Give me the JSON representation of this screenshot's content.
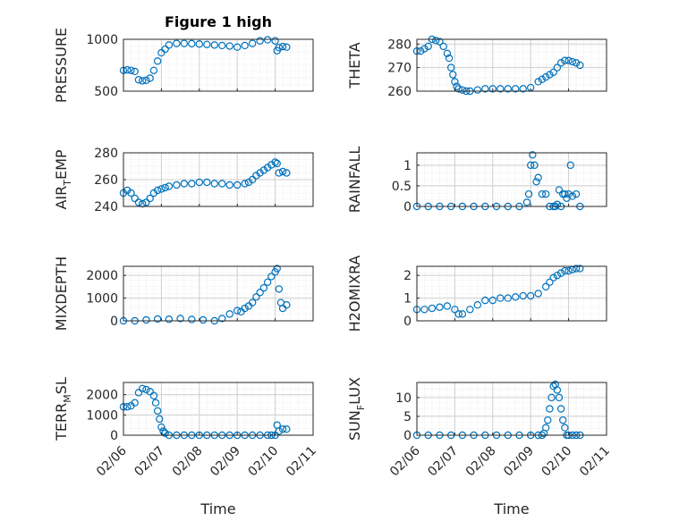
{
  "figure_title": "Figure 1 high",
  "colors": {
    "marker": "#0072BD",
    "axes": "#262626",
    "grid": "#cfcfcf",
    "minor_grid": "#e4e4e4"
  },
  "chart_data": [
    {
      "type": "scatter",
      "ylabel_main": "PRESSURE",
      "ylim": [
        500,
        1000
      ],
      "yticks": [
        500,
        1000
      ],
      "xlim": [
        "02/06",
        "02/11"
      ],
      "xticks": [],
      "grid": true,
      "x": [
        6.0,
        6.1,
        6.2,
        6.3,
        6.4,
        6.5,
        6.6,
        6.7,
        6.8,
        6.9,
        7.0,
        7.1,
        7.2,
        7.4,
        7.6,
        7.8,
        8.0,
        8.2,
        8.4,
        8.6,
        8.8,
        9.0,
        9.2,
        9.4,
        9.6,
        9.8,
        10.0,
        10.05,
        10.1,
        10.2,
        10.3
      ],
      "y": [
        700,
        705,
        700,
        690,
        610,
        600,
        605,
        625,
        700,
        790,
        870,
        905,
        945,
        960,
        960,
        958,
        955,
        950,
        945,
        940,
        935,
        925,
        940,
        960,
        985,
        995,
        985,
        890,
        920,
        930,
        925
      ]
    },
    {
      "type": "scatter",
      "ylabel_main": "THETA",
      "ylim": [
        260,
        282
      ],
      "yticks": [
        260,
        270,
        280
      ],
      "xlim": [
        "02/06",
        "02/11"
      ],
      "xticks": [],
      "grid": true,
      "x": [
        6.0,
        6.1,
        6.2,
        6.3,
        6.4,
        6.5,
        6.6,
        6.7,
        6.8,
        6.85,
        6.9,
        6.95,
        7.0,
        7.05,
        7.1,
        7.2,
        7.3,
        7.4,
        7.6,
        7.8,
        8.0,
        8.2,
        8.4,
        8.6,
        8.8,
        9.0,
        9.2,
        9.3,
        9.4,
        9.5,
        9.6,
        9.7,
        9.8,
        9.9,
        10.0,
        10.1,
        10.2,
        10.3
      ],
      "y": [
        277,
        277,
        278,
        279,
        282,
        281.5,
        281,
        279,
        276,
        274,
        270,
        267,
        264,
        262,
        261,
        260.5,
        260,
        260,
        260.5,
        261,
        261,
        261,
        261,
        261,
        261,
        261.5,
        264,
        265,
        266,
        267,
        268,
        270,
        272,
        273,
        273,
        272.5,
        272,
        271
      ]
    },
    {
      "type": "scatter",
      "ylabel_main": "AIR",
      "ylabel_sub": "T",
      "ylabel_rest": "EMP",
      "ylim": [
        240,
        280
      ],
      "yticks": [
        240,
        260,
        280
      ],
      "xlim": [
        "02/06",
        "02/11"
      ],
      "xticks": [],
      "grid": true,
      "x": [
        6.0,
        6.1,
        6.2,
        6.3,
        6.4,
        6.5,
        6.6,
        6.7,
        6.8,
        6.9,
        7.0,
        7.1,
        7.2,
        7.4,
        7.6,
        7.8,
        8.0,
        8.2,
        8.4,
        8.6,
        8.8,
        9.0,
        9.2,
        9.3,
        9.4,
        9.5,
        9.6,
        9.7,
        9.8,
        9.9,
        10.0,
        10.05,
        10.1,
        10.2,
        10.3
      ],
      "y": [
        250,
        252,
        250,
        246,
        243,
        242,
        243,
        246,
        250,
        252,
        253,
        254,
        255,
        256,
        257,
        257,
        258,
        258,
        257,
        257,
        256,
        256,
        257,
        258,
        260,
        263,
        265,
        267,
        269,
        271,
        273,
        272,
        265,
        266,
        265
      ]
    },
    {
      "type": "scatter",
      "ylabel_main": "RAINFALL",
      "ylim": [
        0,
        1.3
      ],
      "yticks": [
        0,
        0.5,
        1
      ],
      "xlim": [
        "02/06",
        "02/11"
      ],
      "xticks": [],
      "grid": true,
      "x": [
        6.0,
        6.3,
        6.6,
        6.9,
        7.2,
        7.5,
        7.8,
        8.1,
        8.4,
        8.7,
        8.9,
        8.95,
        9.0,
        9.05,
        9.1,
        9.15,
        9.2,
        9.3,
        9.4,
        9.5,
        9.6,
        9.65,
        9.7,
        9.75,
        9.8,
        9.85,
        9.9,
        9.95,
        10.0,
        10.05,
        10.1,
        10.2,
        10.3
      ],
      "y": [
        0,
        0,
        0,
        0,
        0,
        0,
        0,
        0,
        0,
        0,
        0.1,
        0.3,
        1.0,
        1.25,
        1.0,
        0.6,
        0.7,
        0.3,
        0.3,
        0,
        0,
        0,
        0.05,
        0.4,
        0,
        0.3,
        0.3,
        0.2,
        0.3,
        1.0,
        0.25,
        0.3,
        0
      ]
    },
    {
      "type": "scatter",
      "ylabel_main": "MIXDEPTH",
      "ylim": [
        0,
        2400
      ],
      "yticks": [
        0,
        1000,
        2000
      ],
      "xlim": [
        "02/06",
        "02/11"
      ],
      "xticks": [],
      "grid": true,
      "x": [
        6.0,
        6.3,
        6.6,
        6.9,
        7.2,
        7.5,
        7.8,
        8.1,
        8.4,
        8.6,
        8.8,
        9.0,
        9.1,
        9.2,
        9.3,
        9.4,
        9.5,
        9.6,
        9.7,
        9.8,
        9.9,
        10.0,
        10.05,
        10.1,
        10.15,
        10.2,
        10.3
      ],
      "y": [
        0,
        0,
        40,
        80,
        70,
        100,
        60,
        40,
        0,
        100,
        300,
        450,
        400,
        550,
        650,
        800,
        1050,
        1250,
        1450,
        1700,
        1950,
        2150,
        2300,
        1400,
        800,
        550,
        700
      ]
    },
    {
      "type": "scatter",
      "ylabel_main": "H2OMIXRA",
      "ylim": [
        0,
        2.4
      ],
      "yticks": [
        0,
        1,
        2
      ],
      "xlim": [
        "02/06",
        "02/11"
      ],
      "xticks": [],
      "grid": true,
      "x": [
        6.0,
        6.2,
        6.4,
        6.6,
        6.8,
        7.0,
        7.1,
        7.2,
        7.4,
        7.6,
        7.8,
        8.0,
        8.2,
        8.4,
        8.6,
        8.8,
        9.0,
        9.2,
        9.4,
        9.5,
        9.6,
        9.7,
        9.8,
        9.9,
        10.0,
        10.1,
        10.2,
        10.3
      ],
      "y": [
        0.5,
        0.5,
        0.55,
        0.6,
        0.65,
        0.5,
        0.3,
        0.3,
        0.5,
        0.7,
        0.9,
        0.9,
        1.0,
        1.0,
        1.05,
        1.1,
        1.1,
        1.2,
        1.5,
        1.7,
        1.9,
        2.0,
        2.1,
        2.2,
        2.2,
        2.25,
        2.3,
        2.3
      ]
    },
    {
      "type": "scatter",
      "ylabel_main": "TERR",
      "ylabel_sub": "M",
      "ylabel_rest": "SL",
      "ylim": [
        0,
        2600
      ],
      "yticks": [
        0,
        1000,
        2000
      ],
      "xlim": [
        "02/06",
        "02/11"
      ],
      "xticks": [
        "02/06",
        "02/07",
        "02/08",
        "02/09",
        "02/10",
        "02/11"
      ],
      "xlabel": "Time",
      "grid": true,
      "x": [
        6.0,
        6.1,
        6.2,
        6.3,
        6.4,
        6.5,
        6.6,
        6.7,
        6.8,
        6.85,
        6.9,
        6.95,
        7.0,
        7.05,
        7.1,
        7.2,
        7.4,
        7.6,
        7.8,
        8.0,
        8.2,
        8.4,
        8.6,
        8.8,
        9.0,
        9.2,
        9.4,
        9.6,
        9.8,
        9.9,
        10.0,
        10.05,
        10.1,
        10.2,
        10.3
      ],
      "y": [
        1400,
        1400,
        1450,
        1600,
        2100,
        2300,
        2250,
        2150,
        1950,
        1600,
        1200,
        800,
        400,
        200,
        100,
        0,
        0,
        0,
        0,
        0,
        0,
        0,
        0,
        0,
        0,
        0,
        0,
        0,
        0,
        0,
        0,
        500,
        200,
        300,
        300
      ]
    },
    {
      "type": "scatter",
      "ylabel_main": "SUN",
      "ylabel_sub": "F",
      "ylabel_rest": "LUX",
      "ylim": [
        0,
        14
      ],
      "yticks": [
        0,
        5,
        10
      ],
      "xlim": [
        "02/06",
        "02/11"
      ],
      "xticks": [
        "02/06",
        "02/07",
        "02/08",
        "02/09",
        "02/10",
        "02/11"
      ],
      "xlabel": "Time",
      "grid": true,
      "x": [
        6.0,
        6.3,
        6.6,
        6.9,
        7.2,
        7.5,
        7.8,
        8.1,
        8.4,
        8.7,
        9.0,
        9.2,
        9.3,
        9.35,
        9.4,
        9.45,
        9.5,
        9.55,
        9.6,
        9.65,
        9.7,
        9.75,
        9.8,
        9.85,
        9.9,
        9.95,
        10.0,
        10.1,
        10.2,
        10.3
      ],
      "y": [
        0,
        0,
        0,
        0,
        0,
        0,
        0,
        0,
        0,
        0,
        0,
        0,
        0,
        0.5,
        2,
        4,
        7,
        10,
        13,
        13.5,
        12,
        10,
        7,
        4,
        2,
        0,
        0,
        0,
        0,
        0
      ]
    }
  ]
}
